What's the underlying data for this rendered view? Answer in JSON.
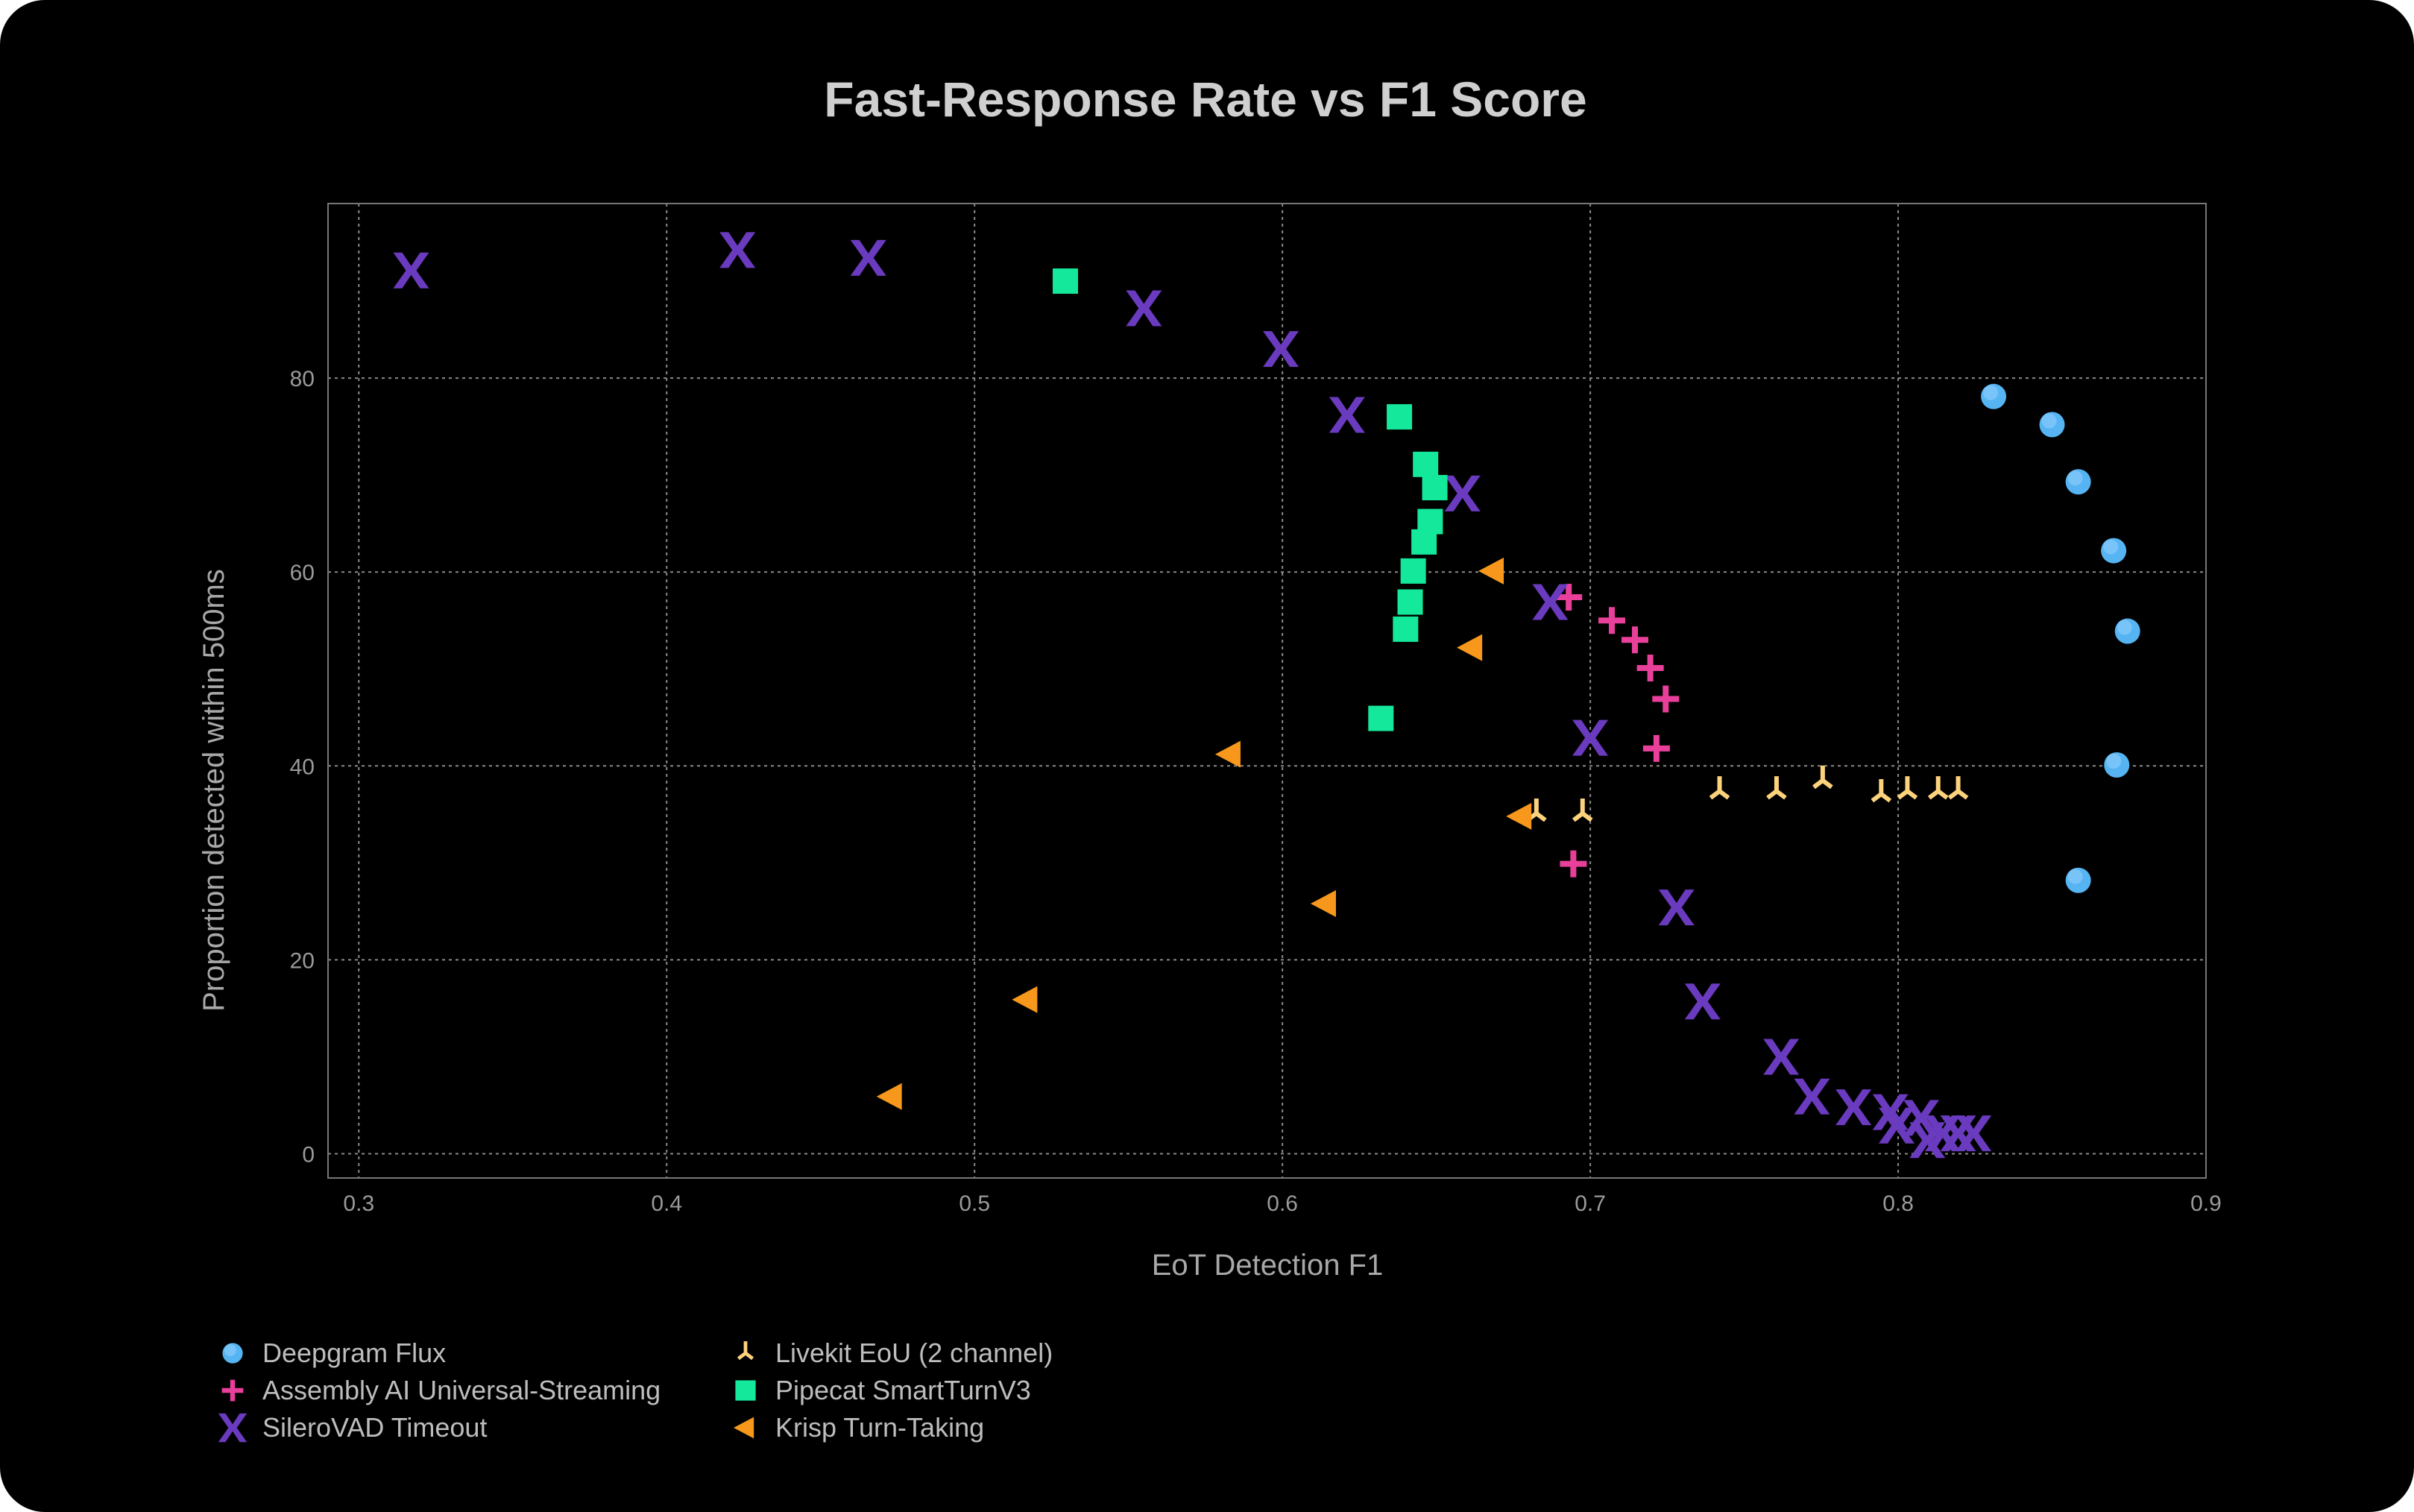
{
  "chart_data": {
    "type": "scatter",
    "title": "Fast-Response Rate vs F1 Score",
    "xlabel": "EoT Detection F1",
    "ylabel": "Proportion detected within 500ms",
    "xlim": [
      0.29,
      0.9
    ],
    "ylim": [
      -2.5,
      98
    ],
    "xticks": [
      "0.3",
      "0.4",
      "0.5",
      "0.6",
      "0.7",
      "0.8",
      "0.9"
    ],
    "xtick_values": [
      0.3,
      0.4,
      0.5,
      0.6,
      0.7,
      0.8,
      0.9
    ],
    "yticks": [
      "0",
      "20",
      "40",
      "60",
      "80"
    ],
    "ytick_values": [
      0,
      20,
      40,
      60,
      80
    ],
    "grid": true,
    "legend_position": "bottom-left",
    "series": [
      {
        "name": "Deepgram Flux",
        "marker": "circle",
        "color": "#56b4f2",
        "x": [
          0.831,
          0.85,
          0.8585,
          0.87,
          0.8745,
          0.871,
          0.8585
        ],
        "y": [
          78.1,
          75.2,
          69.3,
          62.2,
          53.9,
          40.1,
          28.2
        ]
      },
      {
        "name": "Assembly AI Universal-Streaming",
        "marker": "plus",
        "color": "#e8409a",
        "x": [
          0.693,
          0.707,
          0.7145,
          0.7195,
          0.7245,
          0.7215,
          0.6945
        ],
        "y": [
          57.4,
          55.0,
          53.0,
          50.1,
          46.9,
          41.8,
          29.9
        ]
      },
      {
        "name": "SileroVAD Timeout",
        "marker": "x",
        "color": "#6a3bbf",
        "x": [
          0.317,
          0.423,
          0.4655,
          0.555,
          0.5995,
          0.621,
          0.6585,
          0.687,
          0.7,
          0.728,
          0.7365,
          0.762,
          0.772,
          0.7855,
          0.7975,
          0.7995,
          0.8075,
          0.8095,
          0.8145,
          0.8195,
          0.8245
        ],
        "y": [
          91.1,
          93.2,
          92.4,
          87.2,
          83.0,
          76.2,
          68.1,
          56.9,
          42.9,
          25.4,
          15.7,
          10.0,
          5.9,
          4.8,
          4.3,
          2.9,
          3.7,
          1.4,
          2.1,
          2.1,
          2.1
        ]
      },
      {
        "name": "Livekit EoU (2 channel)",
        "marker": "tri",
        "color": "#fcd27d",
        "x": [
          0.6825,
          0.6975,
          0.742,
          0.7605,
          0.7755,
          0.7945,
          0.803,
          0.813,
          0.8195
        ],
        "y": [
          35.1,
          35.1,
          37.4,
          37.4,
          38.5,
          37.1,
          37.4,
          37.4,
          37.4
        ]
      },
      {
        "name": "Pipecat SmartTurnV3",
        "marker": "square",
        "color": "#14e89a",
        "x": [
          0.5295,
          0.638,
          0.6465,
          0.6495,
          0.648,
          0.646,
          0.6425,
          0.6415,
          0.64,
          0.632
        ],
        "y": [
          90.0,
          76.0,
          71.1,
          68.7,
          65.2,
          63.1,
          60.1,
          56.9,
          54.1,
          44.9
        ]
      },
      {
        "name": "Krisp Turn-Taking",
        "marker": "triangle-left",
        "color": "#f7981d",
        "x": [
          0.6685,
          0.6615,
          0.583,
          0.6775,
          0.614,
          0.517,
          0.473
        ],
        "y": [
          60.1,
          52.2,
          41.2,
          34.8,
          25.8,
          15.9,
          5.9
        ]
      }
    ]
  }
}
